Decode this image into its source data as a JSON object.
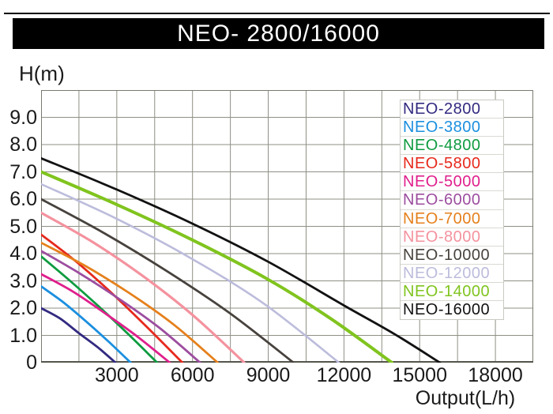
{
  "title_bar": {
    "text": "NEO- 2800/16000"
  },
  "axes": {
    "y_label": "H(m)",
    "x_label": "Output(L/h)",
    "y_ticks": [
      {
        "value": 9,
        "label": "9.0"
      },
      {
        "value": 8,
        "label": "8.0"
      },
      {
        "value": 7,
        "label": "7.0"
      },
      {
        "value": 6,
        "label": "6.0"
      },
      {
        "value": 5,
        "label": "5.0"
      },
      {
        "value": 4,
        "label": "4.0"
      },
      {
        "value": 3,
        "label": "3.0"
      },
      {
        "value": 2,
        "label": "2.0"
      },
      {
        "value": 1,
        "label": "1.0"
      },
      {
        "value": 0,
        "label": "0"
      }
    ],
    "x_ticks": [
      {
        "value": 3000,
        "label": "3000"
      },
      {
        "value": 6000,
        "label": "6000"
      },
      {
        "value": 9000,
        "label": "9000"
      },
      {
        "value": 12000,
        "label": "12000"
      },
      {
        "value": 15000,
        "label": "15000"
      },
      {
        "value": 18000,
        "label": "18000"
      }
    ]
  },
  "legend": {
    "position": "top-right"
  },
  "colors": {
    "grid": "#8f8f85",
    "plot_border": "#7a7a70",
    "x_axis_line": "#55554d",
    "title_bg": "#000000",
    "title_text": "#ffffff"
  },
  "chart_data": {
    "type": "line",
    "title": "NEO- 2800/16000",
    "xlabel": "Output(L/h)",
    "ylabel": "H(m)",
    "xlim": [
      0,
      19500
    ],
    "ylim": [
      0,
      10
    ],
    "x_gridline_step": 1500,
    "y_gridline_step": 1.0,
    "grid": true,
    "legend_position": "top-right",
    "series": [
      {
        "name": "NEO-2800",
        "color": "#322a80",
        "width": 2.8,
        "max_head_m": 2.0,
        "max_flow_lh": 2950,
        "points": [
          [
            0,
            2.0
          ],
          [
            750,
            1.62
          ],
          [
            1500,
            1.08
          ],
          [
            2250,
            0.56
          ],
          [
            2950,
            0
          ]
        ]
      },
      {
        "name": "NEO-3800",
        "color": "#1b8fdf",
        "width": 2.8,
        "max_head_m": 2.8,
        "max_flow_lh": 3550,
        "points": [
          [
            0,
            2.8
          ],
          [
            900,
            2.2
          ],
          [
            1800,
            1.5
          ],
          [
            2700,
            0.75
          ],
          [
            3550,
            0
          ]
        ]
      },
      {
        "name": "NEO-4800",
        "color": "#0f9b40",
        "width": 2.8,
        "max_head_m": 3.9,
        "max_flow_lh": 4600,
        "points": [
          [
            0,
            3.9
          ],
          [
            1150,
            3.0
          ],
          [
            2300,
            2.05
          ],
          [
            3450,
            1.05
          ],
          [
            4600,
            0
          ]
        ]
      },
      {
        "name": "NEO-5800",
        "color": "#e6291c",
        "width": 2.8,
        "max_head_m": 4.7,
        "max_flow_lh": 5600,
        "points": [
          [
            0,
            4.7
          ],
          [
            1400,
            3.7
          ],
          [
            2800,
            2.55
          ],
          [
            4200,
            1.3
          ],
          [
            5600,
            0
          ]
        ]
      },
      {
        "name": "NEO-5000",
        "color": "#e01f8c",
        "width": 2.8,
        "max_head_m": 3.25,
        "max_flow_lh": 5100,
        "points": [
          [
            0,
            3.25
          ],
          [
            1275,
            2.6
          ],
          [
            2550,
            1.8
          ],
          [
            3825,
            0.95
          ],
          [
            5100,
            0
          ]
        ]
      },
      {
        "name": "NEO-6000",
        "color": "#9c4d9f",
        "width": 2.8,
        "max_head_m": 4.1,
        "max_flow_lh": 6300,
        "points": [
          [
            0,
            4.1
          ],
          [
            1575,
            3.25
          ],
          [
            3150,
            2.3
          ],
          [
            4725,
            1.25
          ],
          [
            6300,
            0
          ]
        ]
      },
      {
        "name": "NEO-7000",
        "color": "#e5801c",
        "width": 2.8,
        "max_head_m": 4.4,
        "max_flow_lh": 7000,
        "points": [
          [
            0,
            4.4
          ],
          [
            1750,
            3.55
          ],
          [
            3500,
            2.55
          ],
          [
            5250,
            1.4
          ],
          [
            7000,
            0
          ]
        ]
      },
      {
        "name": "NEO-8000",
        "color": "#f4929e",
        "width": 3.2,
        "max_head_m": 5.5,
        "max_flow_lh": 8050,
        "points": [
          [
            0,
            5.5
          ],
          [
            2000,
            4.45
          ],
          [
            4000,
            3.2
          ],
          [
            6000,
            1.75
          ],
          [
            8050,
            0
          ]
        ]
      },
      {
        "name": "NEO-10000",
        "color": "#47423d",
        "width": 2.8,
        "max_head_m": 6.0,
        "max_flow_lh": 10000,
        "points": [
          [
            0,
            6.0
          ],
          [
            2500,
            4.75
          ],
          [
            5000,
            3.35
          ],
          [
            7500,
            1.8
          ],
          [
            10000,
            0
          ]
        ]
      },
      {
        "name": "NEO-12000",
        "color": "#bcbcdc",
        "width": 2.6,
        "max_head_m": 6.55,
        "max_flow_lh": 11800,
        "points": [
          [
            0,
            6.55
          ],
          [
            2950,
            5.3
          ],
          [
            5900,
            3.85
          ],
          [
            8850,
            2.15
          ],
          [
            11800,
            0
          ]
        ]
      },
      {
        "name": "NEO-14000",
        "color": "#80c41e",
        "width": 4.0,
        "max_head_m": 7.0,
        "max_flow_lh": 13900,
        "points": [
          [
            0,
            7.0
          ],
          [
            3000,
            5.8
          ],
          [
            6000,
            4.5
          ],
          [
            9000,
            3.05
          ],
          [
            11500,
            1.6
          ],
          [
            13900,
            0
          ]
        ]
      },
      {
        "name": "NEO-16000",
        "color": "#121212",
        "width": 2.8,
        "max_head_m": 7.5,
        "max_flow_lh": 15800,
        "points": [
          [
            0,
            7.5
          ],
          [
            3000,
            6.35
          ],
          [
            6000,
            5.1
          ],
          [
            9000,
            3.7
          ],
          [
            12000,
            2.1
          ],
          [
            14000,
            1.05
          ],
          [
            15800,
            0
          ]
        ]
      }
    ]
  }
}
